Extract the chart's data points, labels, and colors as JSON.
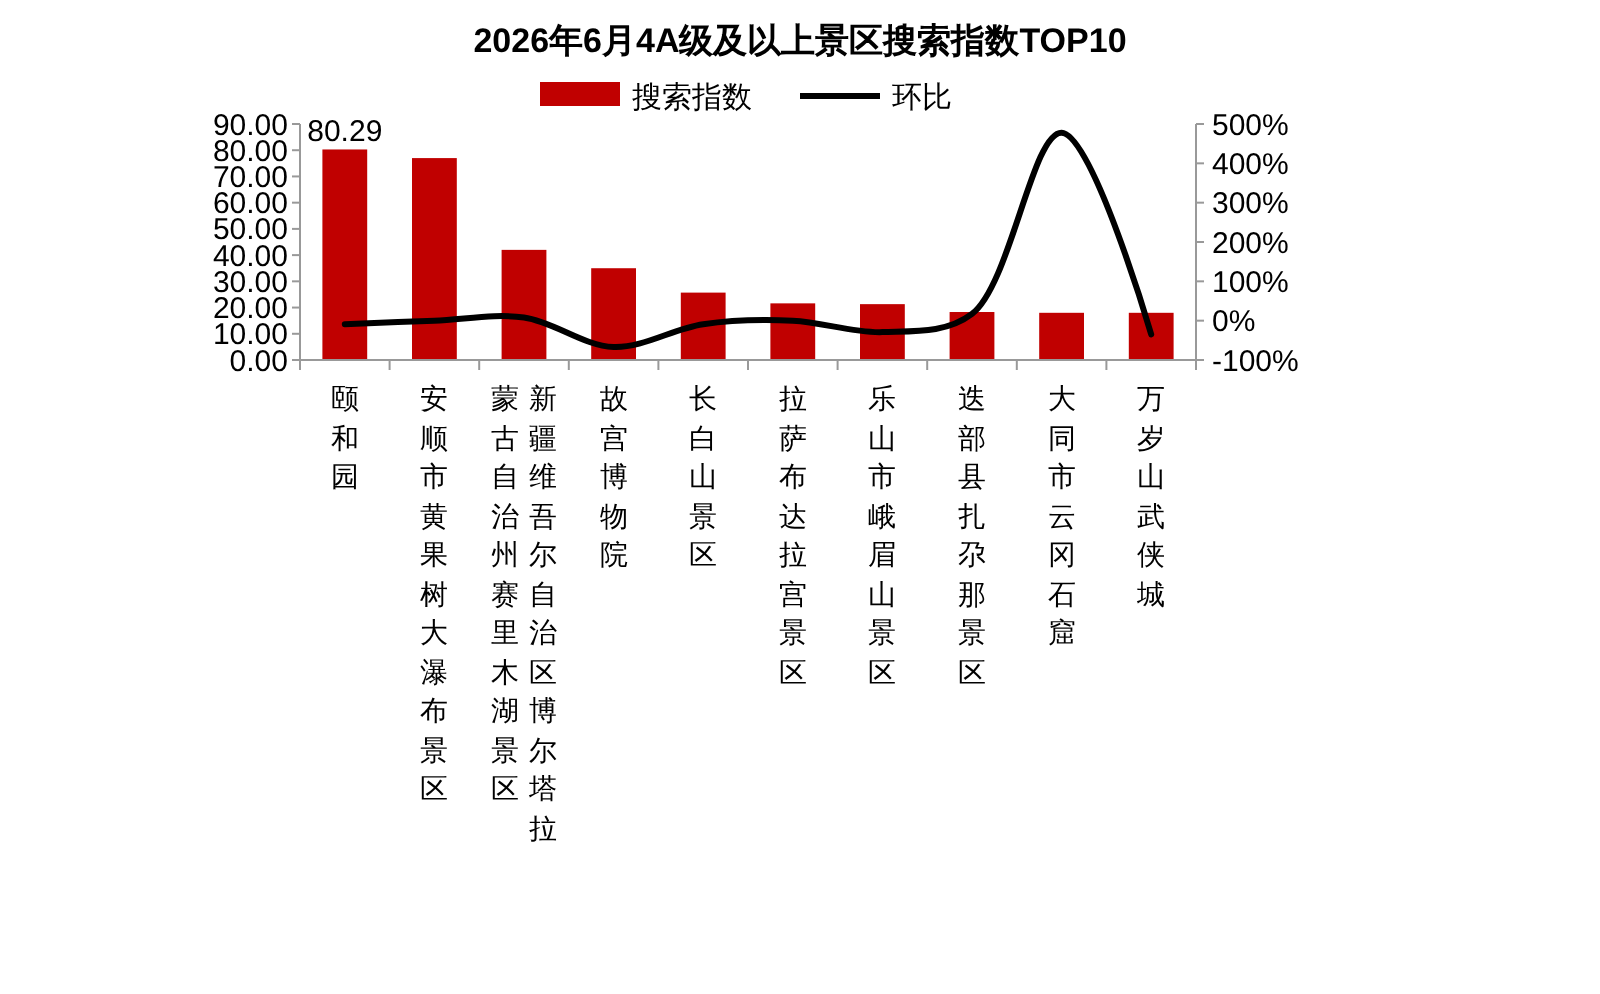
{
  "chart_data": {
    "type": "bar",
    "title": "2026年6月4A级及以上景区搜索指数TOP10",
    "categories": [
      "颐和园",
      "安顺市黄果树大瀑布景区",
      "新疆维吾尔自治区博尔塔拉蒙古自治州赛里木湖景区",
      "故宫博物院",
      "长白山景区",
      "拉萨布达拉宫景区",
      "乐山市峨眉山景区",
      "迭部县扎尕那景区",
      "大同市云冈石窟",
      "万岁山武侠城"
    ],
    "series": [
      {
        "name": "搜索指数",
        "color": "#c00000",
        "values": [
          80.29,
          77,
          42,
          35,
          25.7,
          21.6,
          21.3,
          18.3,
          18,
          18
        ],
        "value_labels": [
          "80.29",
          null,
          null,
          null,
          null,
          null,
          null,
          null,
          null,
          null
        ]
      },
      {
        "name": "环比",
        "type": "line",
        "axis": "y2",
        "color": "#000000",
        "values": [
          -9,
          0,
          8,
          -67,
          -9,
          0,
          -29,
          17,
          478,
          -35
        ]
      }
    ],
    "ylim": [
      0,
      90
    ],
    "yticks": [
      {
        "value": 0,
        "label": "0.00"
      },
      {
        "value": 10,
        "label": "10.00"
      },
      {
        "value": 20,
        "label": "20.00"
      },
      {
        "value": 30,
        "label": "30.00"
      },
      {
        "value": 40,
        "label": "40.00"
      },
      {
        "value": 50,
        "label": "50.00"
      },
      {
        "value": 60,
        "label": "60.00"
      },
      {
        "value": 70,
        "label": "70.00"
      },
      {
        "value": 80,
        "label": "80.00"
      },
      {
        "value": 90,
        "label": "90.00"
      }
    ],
    "y2lim": [
      -100,
      500
    ],
    "y2ticks": [
      {
        "value": -100,
        "label": "-100%"
      },
      {
        "value": 0,
        "label": "0%"
      },
      {
        "value": 100,
        "label": "100%"
      },
      {
        "value": 200,
        "label": "200%"
      },
      {
        "value": 300,
        "label": "300%"
      },
      {
        "value": 400,
        "label": "400%"
      },
      {
        "value": 500,
        "label": "500%"
      }
    ],
    "legend": "top",
    "grid": false,
    "marker": "none",
    "line_style": "solid"
  }
}
